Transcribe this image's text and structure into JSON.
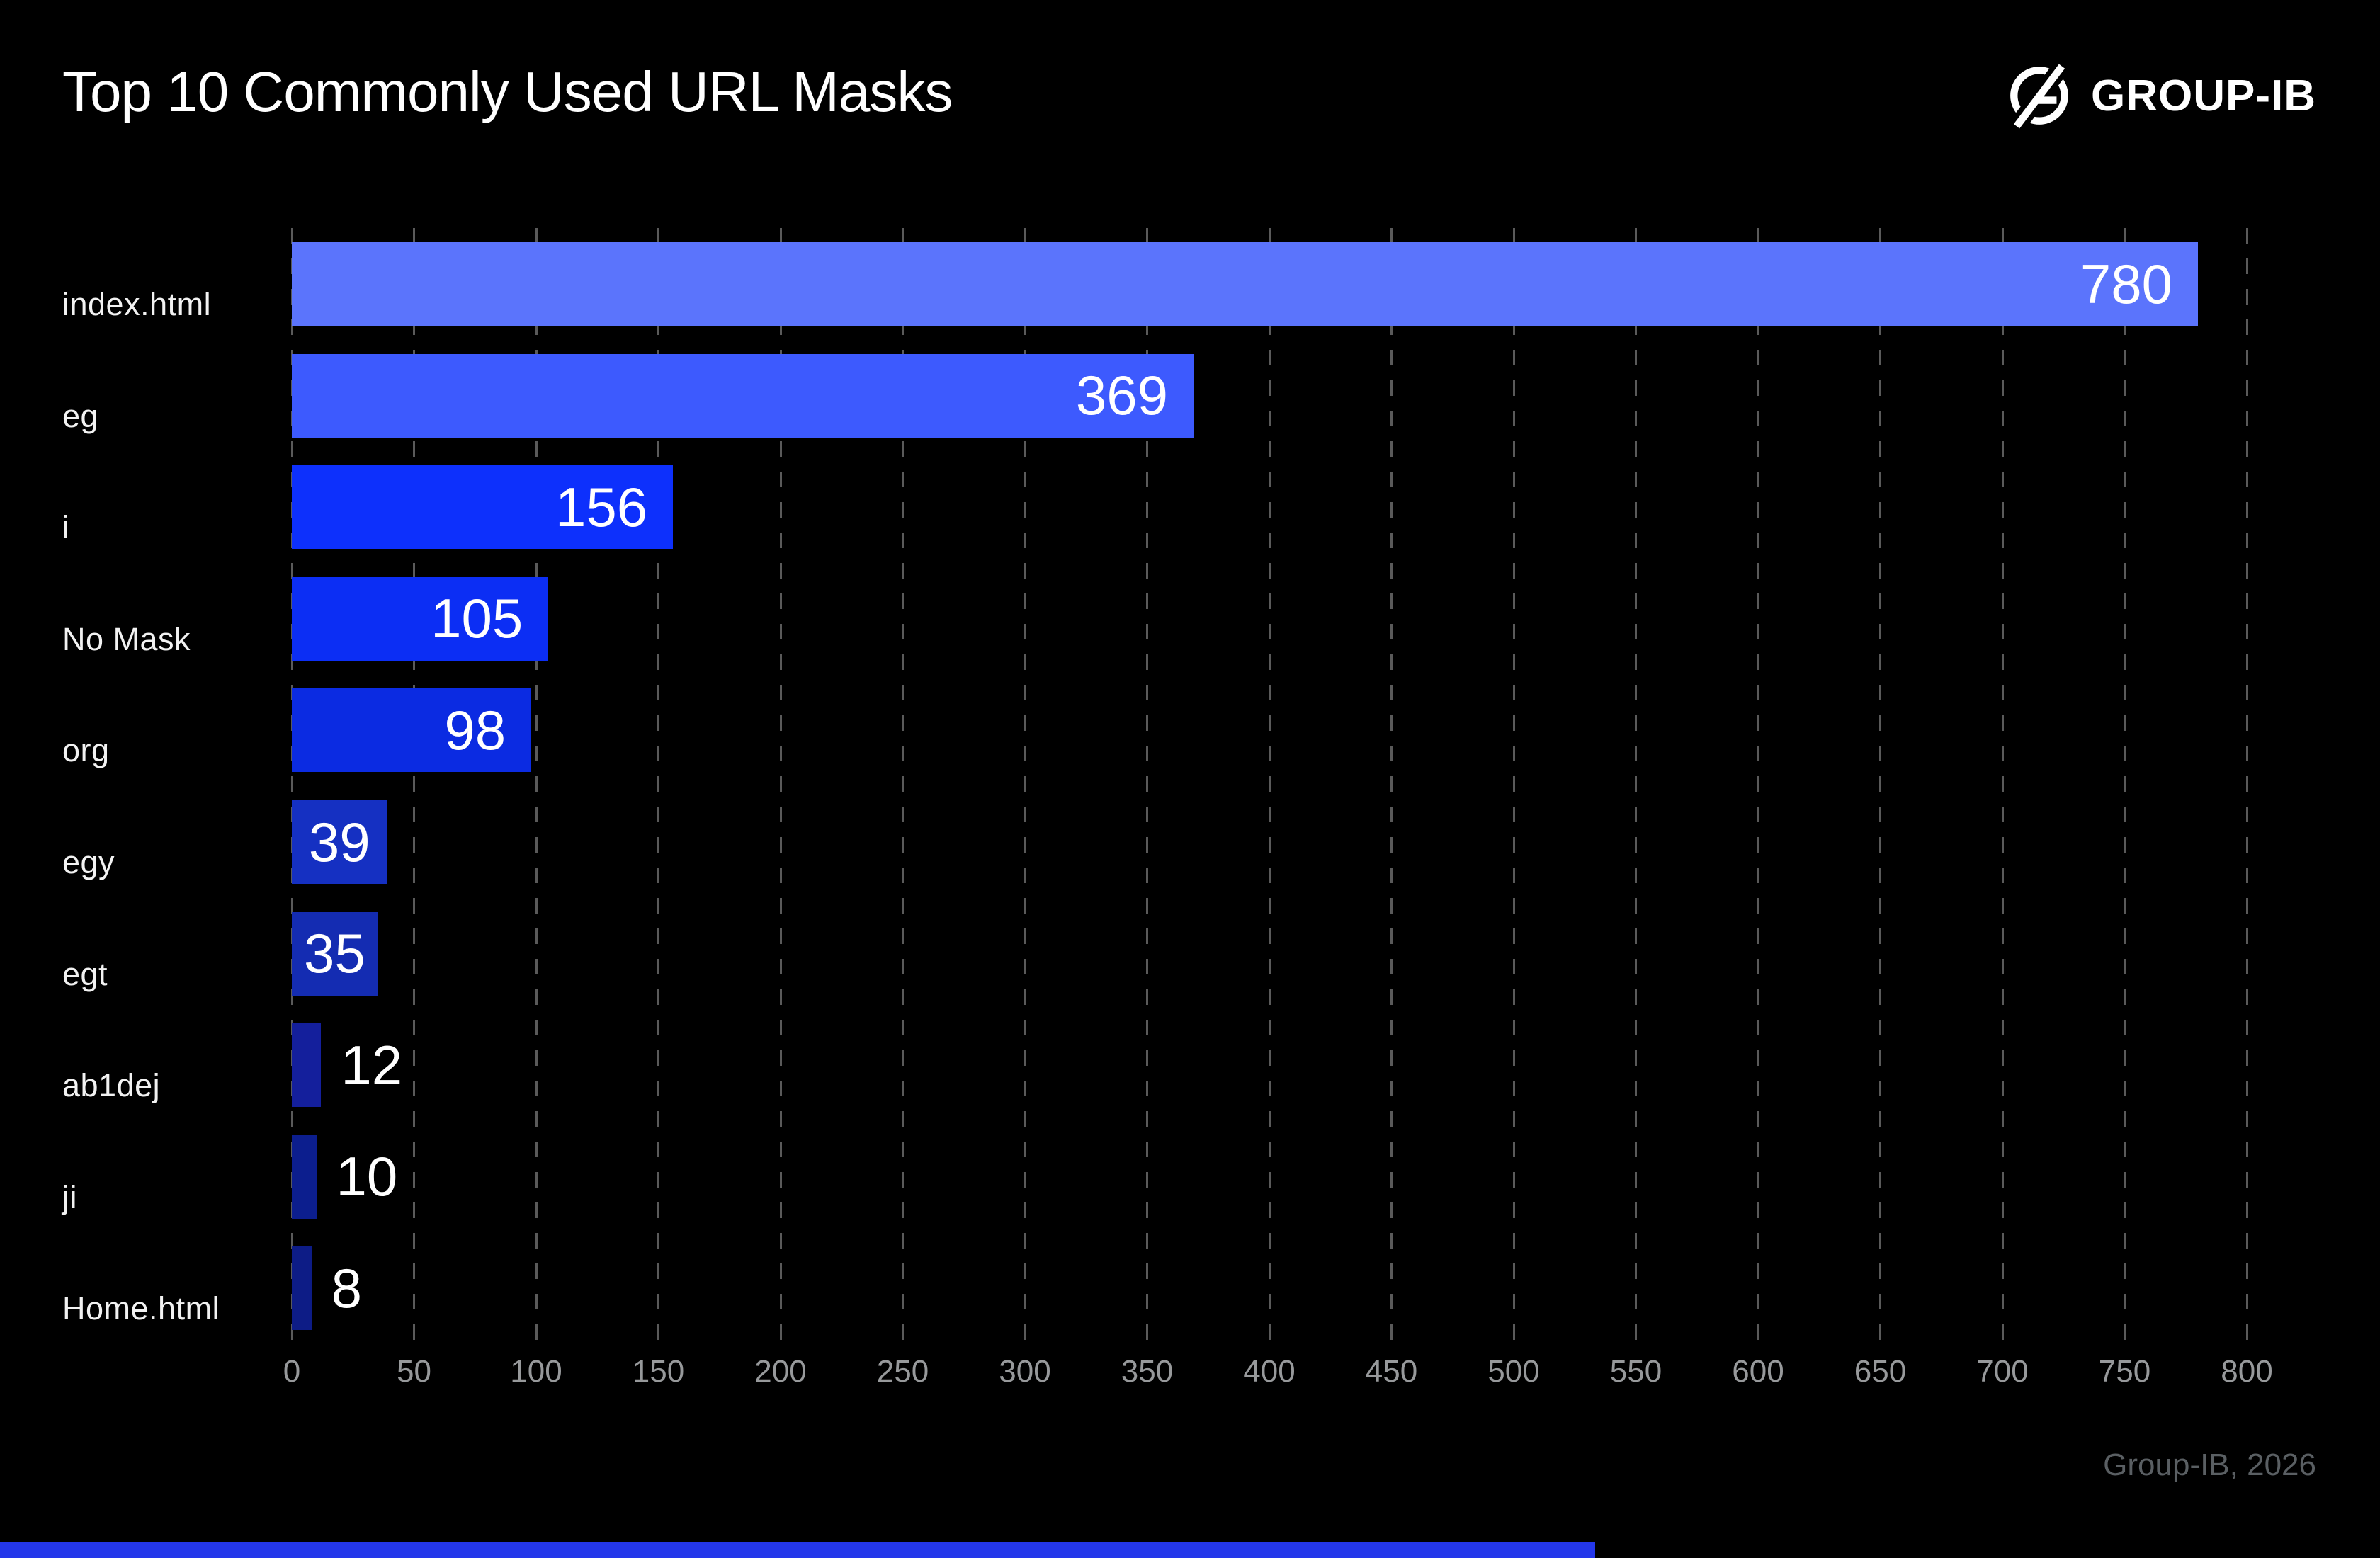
{
  "header": {
    "title": "Top 10 Commonly Used URL Masks",
    "brand": "GROUP-IB"
  },
  "footer": {
    "source": "Group-IB, 2026"
  },
  "colors": {
    "background": "#000000",
    "title_text": "#ffffff",
    "grid": "#5a5a5a",
    "tick_text": "#97999b",
    "footer_text": "#5a5f63",
    "value_text": "#ffffff",
    "accent_strip": "#2437ea"
  },
  "chart_data": {
    "type": "bar",
    "orientation": "horizontal",
    "title": "Top 10 Commonly Used URL Masks",
    "xlabel": "",
    "ylabel": "",
    "categories": [
      "index.html",
      "eg",
      "i",
      "No Mask",
      "org",
      "egy",
      "egt",
      "ab1dej",
      "ji",
      "Home.html"
    ],
    "values": [
      780,
      369,
      156,
      105,
      98,
      39,
      35,
      12,
      10,
      8
    ],
    "bar_colors": [
      "#5b74fc",
      "#3d5afe",
      "#0d30fc",
      "#0c2ef4",
      "#0b2be2",
      "#1530c2",
      "#142cb2",
      "#141f9c",
      "#0c1e8e",
      "#0d1c86"
    ],
    "xlim": [
      0,
      800
    ],
    "x_ticks": [
      0,
      50,
      100,
      150,
      200,
      250,
      300,
      350,
      400,
      450,
      500,
      550,
      600,
      650,
      700,
      750,
      800
    ],
    "grid": "dashed-vertical",
    "legend": "none",
    "value_labels": "on-bars"
  }
}
